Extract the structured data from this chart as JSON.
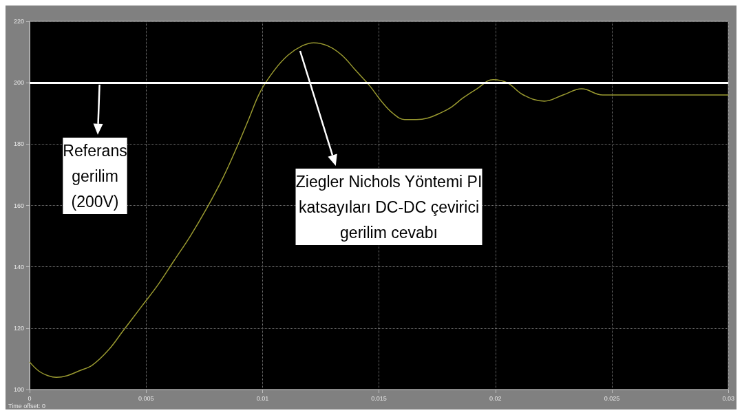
{
  "chart_data": {
    "type": "line",
    "x": [
      0,
      0.0004,
      0.0008,
      0.00115,
      0.0016,
      0.0021,
      0.0027,
      0.0034,
      0.004,
      0.0048,
      0.0055,
      0.0062,
      0.0069,
      0.0076,
      0.0083,
      0.0089,
      0.0094,
      0.0099,
      0.0105,
      0.0111,
      0.0117,
      0.0122,
      0.0128,
      0.0134,
      0.014,
      0.0146,
      0.0151,
      0.0156,
      0.0161,
      0.0166,
      0.0171,
      0.0176,
      0.0181,
      0.0186,
      0.0192,
      0.0199,
      0.0205,
      0.0212,
      0.0221,
      0.0229,
      0.0237,
      0.0246,
      0.03
    ],
    "series": [
      {
        "color": "#9a9a30",
        "values": [
          109,
          106,
          104.5,
          104,
          104.5,
          106,
          108,
          113,
          119,
          127,
          134,
          142,
          150,
          159,
          169,
          179,
          188,
          197,
          204,
          209,
          212,
          213,
          212,
          209,
          204,
          199,
          194,
          190,
          188,
          188,
          188.5,
          190,
          192,
          195,
          198,
          201,
          200,
          196,
          194,
          196,
          198,
          196,
          196
        ]
      }
    ],
    "xlim": [
      0,
      0.03
    ],
    "xticks": [
      0,
      0.005,
      0.01,
      0.015,
      0.02,
      0.025,
      0.03
    ],
    "ylim": [
      100,
      220
    ],
    "yticks": [
      100,
      120,
      140,
      160,
      180,
      200,
      220
    ],
    "grid": true,
    "line_style": "solid",
    "marker": "none",
    "ref_lines": [
      {
        "axis": "y",
        "value": 200,
        "color": "#ffffff",
        "line_style": "solid"
      }
    ],
    "annotations": [
      {
        "text": "Referans\ngerilim\n(200V)",
        "x": 0.003,
        "y": 200
      },
      {
        "text": "Ziegler Nichols Yöntemi PI\nkatsayıları DC-DC çevirici\ngerilim cevabı",
        "x": 0.0116,
        "y": 211
      },
      "Time offset: 0"
    ]
  }
}
